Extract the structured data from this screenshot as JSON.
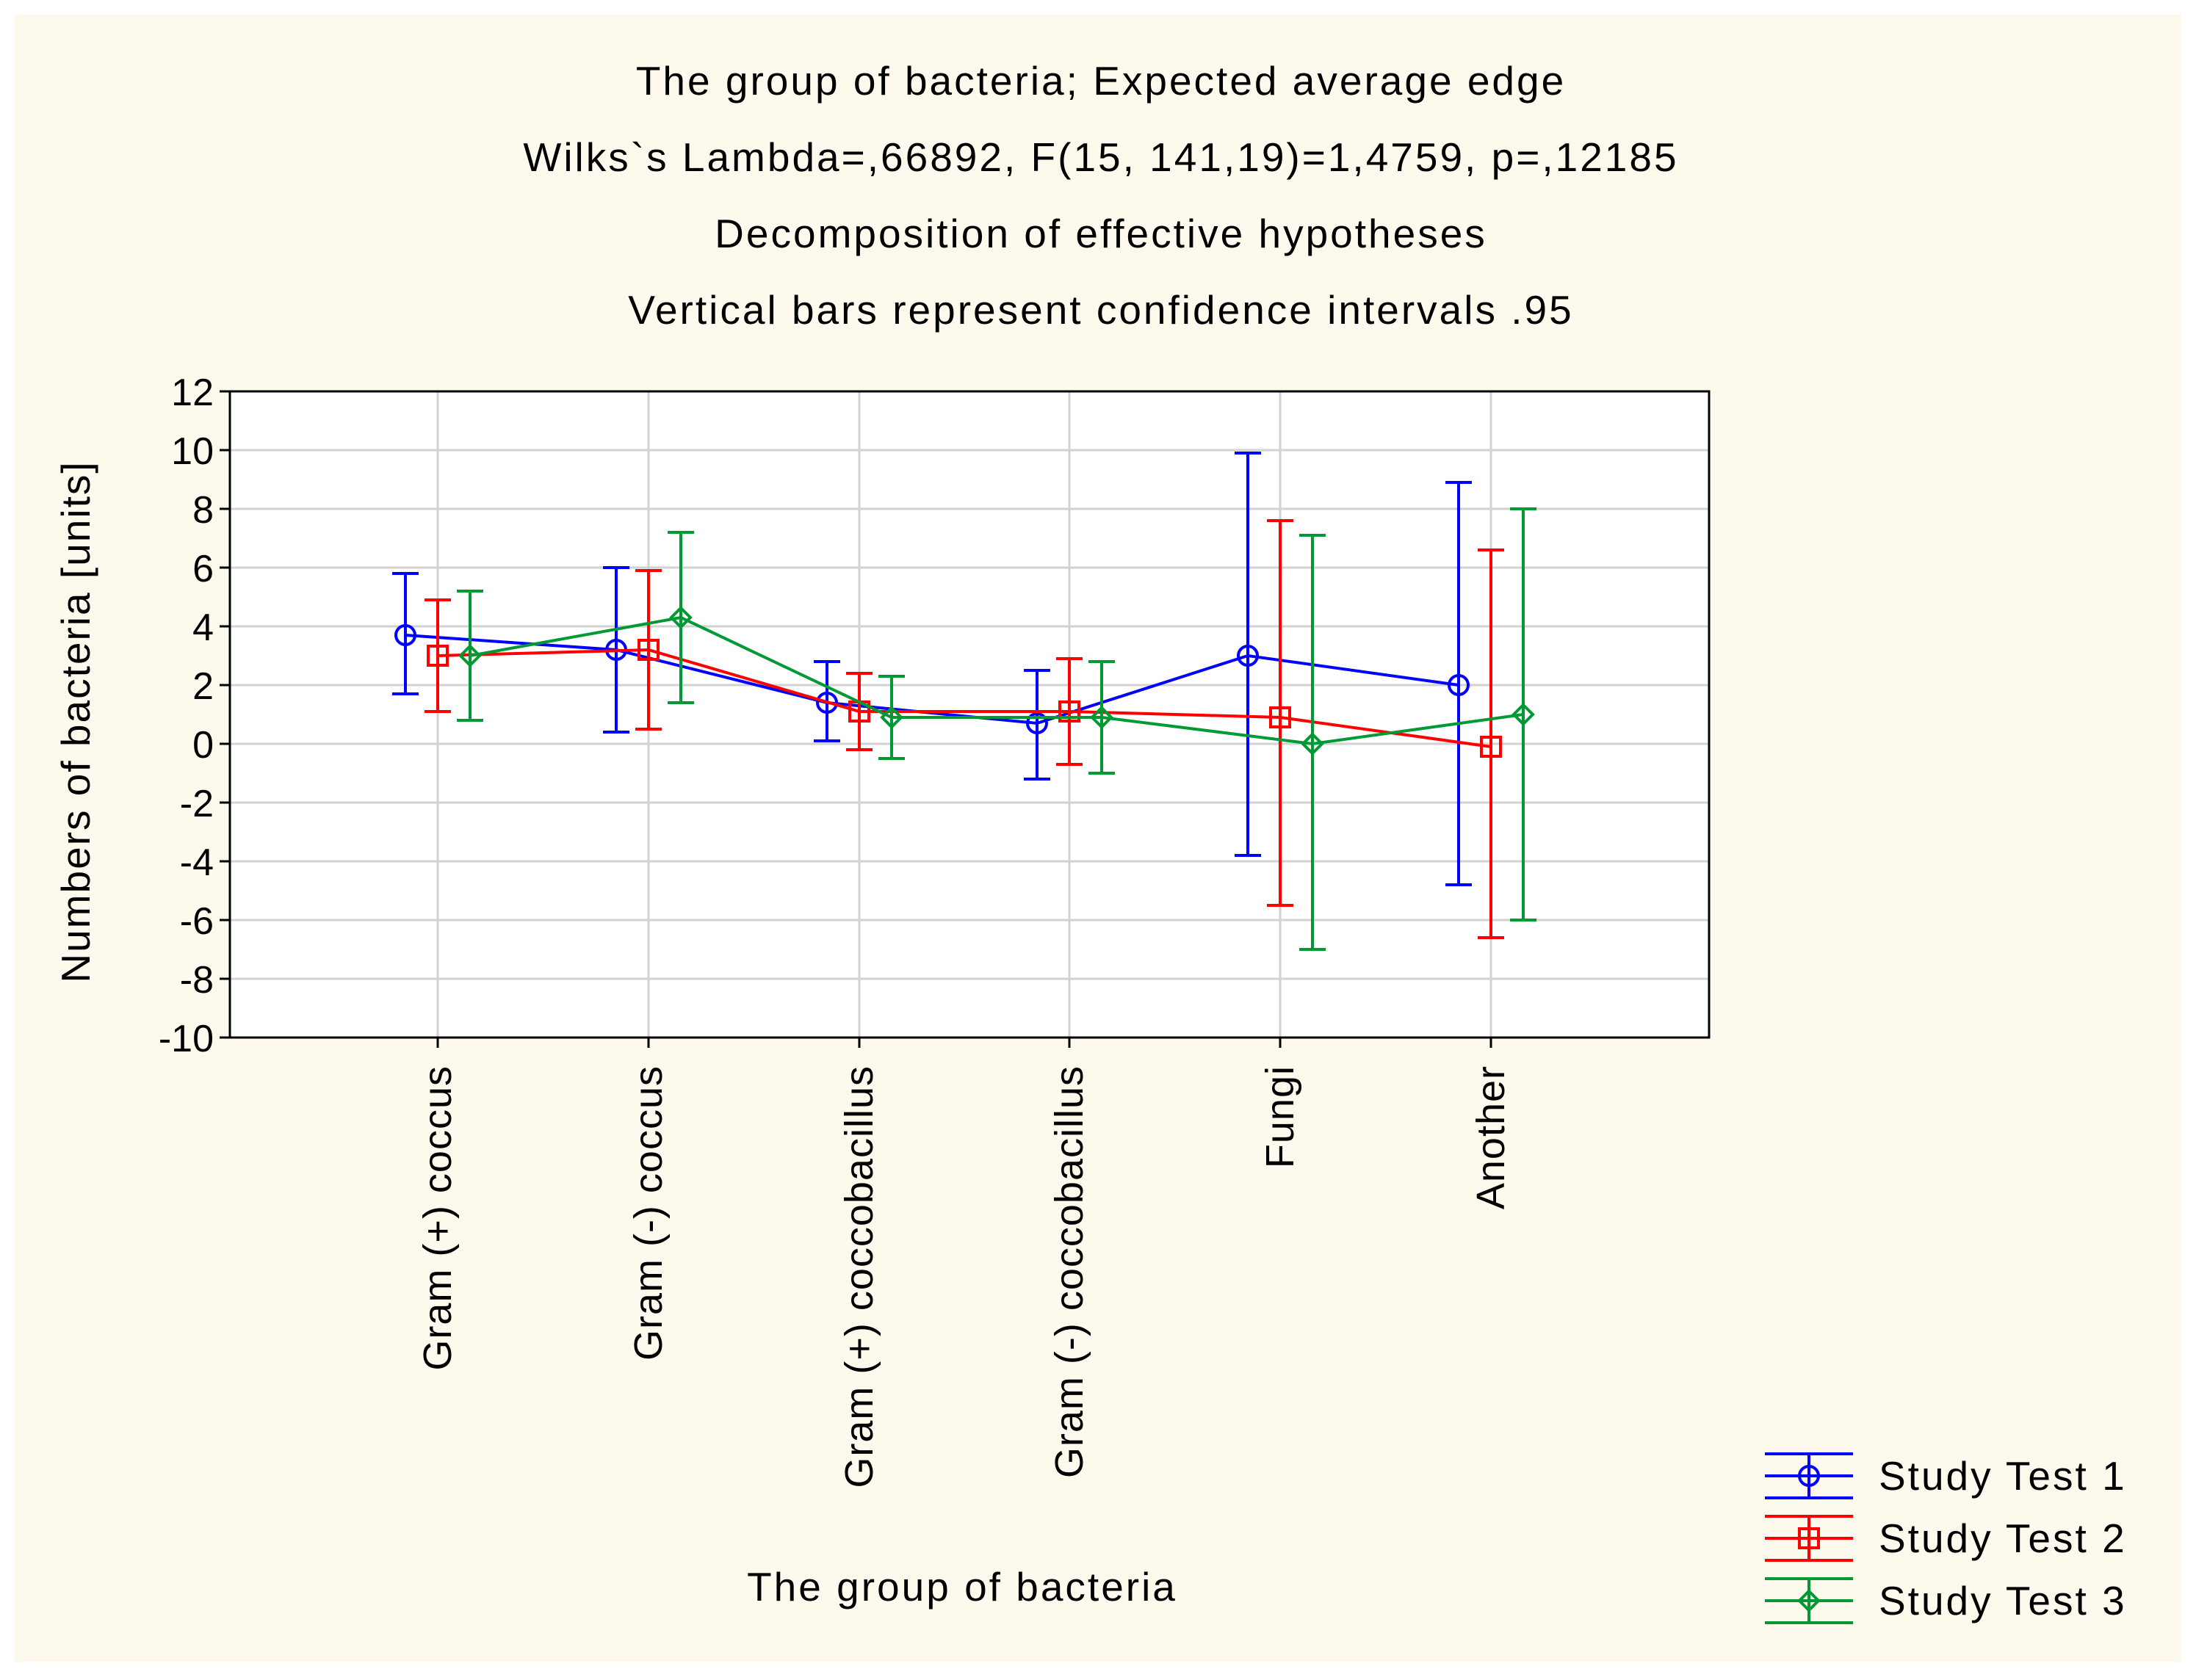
{
  "colors": {
    "outer_bg": "#ffffff",
    "panel_bg": "#fdf9ec",
    "plot_bg": "#ffffff",
    "grid": "#d2d2d2",
    "axis": "#000000",
    "text": "#000000"
  },
  "chart_data": {
    "type": "line",
    "title_lines": [
      "The group of bacteria; Expected average edge",
      "Wilks`s Lambda=,66892, F(15, 141,19)=1,4759, p=,12185",
      "Decomposition of effective hypotheses",
      "Vertical bars represent confidence intervals .95"
    ],
    "xlabel": "The group of bacteria",
    "ylabel": "Numbers of bacteria [units]",
    "ylim": [
      -10,
      12
    ],
    "yticks": [
      12,
      10,
      8,
      6,
      4,
      2,
      0,
      -2,
      -4,
      -6,
      -8,
      -10
    ],
    "ytick_labels": [
      "12",
      "10",
      "8",
      "6",
      "4",
      "2",
      "0",
      "-2",
      "-4",
      "-6",
      "-8",
      "-10"
    ],
    "categories": [
      "Gram (+) coccus",
      "Gram (-) coccus",
      "Gram (+) coccobacillus",
      "Gram (-) coccobacillus",
      "Fungi",
      "Another"
    ],
    "grid": true,
    "legend_position": "bottom-right",
    "error_bars": "95% confidence intervals",
    "series": [
      {
        "name": "Study Test 1",
        "color": "#0000ff",
        "marker": "circle",
        "values": [
          3.7,
          3.2,
          1.4,
          0.7,
          3.0,
          2.0
        ],
        "ci_low": [
          1.7,
          0.4,
          0.1,
          -1.2,
          -3.8,
          -4.8
        ],
        "ci_high": [
          5.8,
          6.0,
          2.8,
          2.5,
          9.9,
          8.9
        ]
      },
      {
        "name": "Study Test 2",
        "color": "#ff0000",
        "marker": "square",
        "values": [
          3.0,
          3.2,
          1.1,
          1.1,
          0.9,
          -0.1
        ],
        "ci_low": [
          1.1,
          0.5,
          -0.2,
          -0.7,
          -5.5,
          -6.6
        ],
        "ci_high": [
          4.9,
          5.9,
          2.4,
          2.9,
          7.6,
          6.6
        ]
      },
      {
        "name": "Study Test 3",
        "color": "#009933",
        "marker": "diamond",
        "values": [
          3.0,
          4.3,
          0.9,
          0.9,
          0.0,
          1.0
        ],
        "ci_low": [
          0.8,
          1.4,
          -0.5,
          -1.0,
          -7.0,
          -6.0
        ],
        "ci_high": [
          5.2,
          7.2,
          2.3,
          2.8,
          7.1,
          8.0
        ]
      }
    ]
  }
}
